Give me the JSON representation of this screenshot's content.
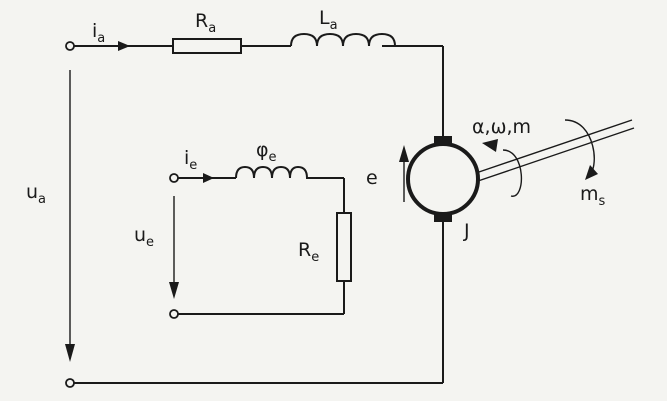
{
  "armature": {
    "current": {
      "main": "i",
      "sub": "a"
    },
    "resistor": {
      "main": "R",
      "sub": "a"
    },
    "inductor": {
      "main": "L",
      "sub": "a"
    },
    "voltage": {
      "main": "u",
      "sub": "a"
    }
  },
  "field": {
    "current": {
      "main": "i",
      "sub": "e"
    },
    "flux": {
      "main": "φ",
      "sub": "e"
    },
    "resistor": {
      "main": "R",
      "sub": "e"
    },
    "voltage": {
      "main": "u",
      "sub": "e"
    }
  },
  "motor": {
    "emf": "e",
    "inertia": "J",
    "motion": "α,ω,m",
    "load_torque": {
      "main": "m",
      "sub": "s"
    }
  }
}
